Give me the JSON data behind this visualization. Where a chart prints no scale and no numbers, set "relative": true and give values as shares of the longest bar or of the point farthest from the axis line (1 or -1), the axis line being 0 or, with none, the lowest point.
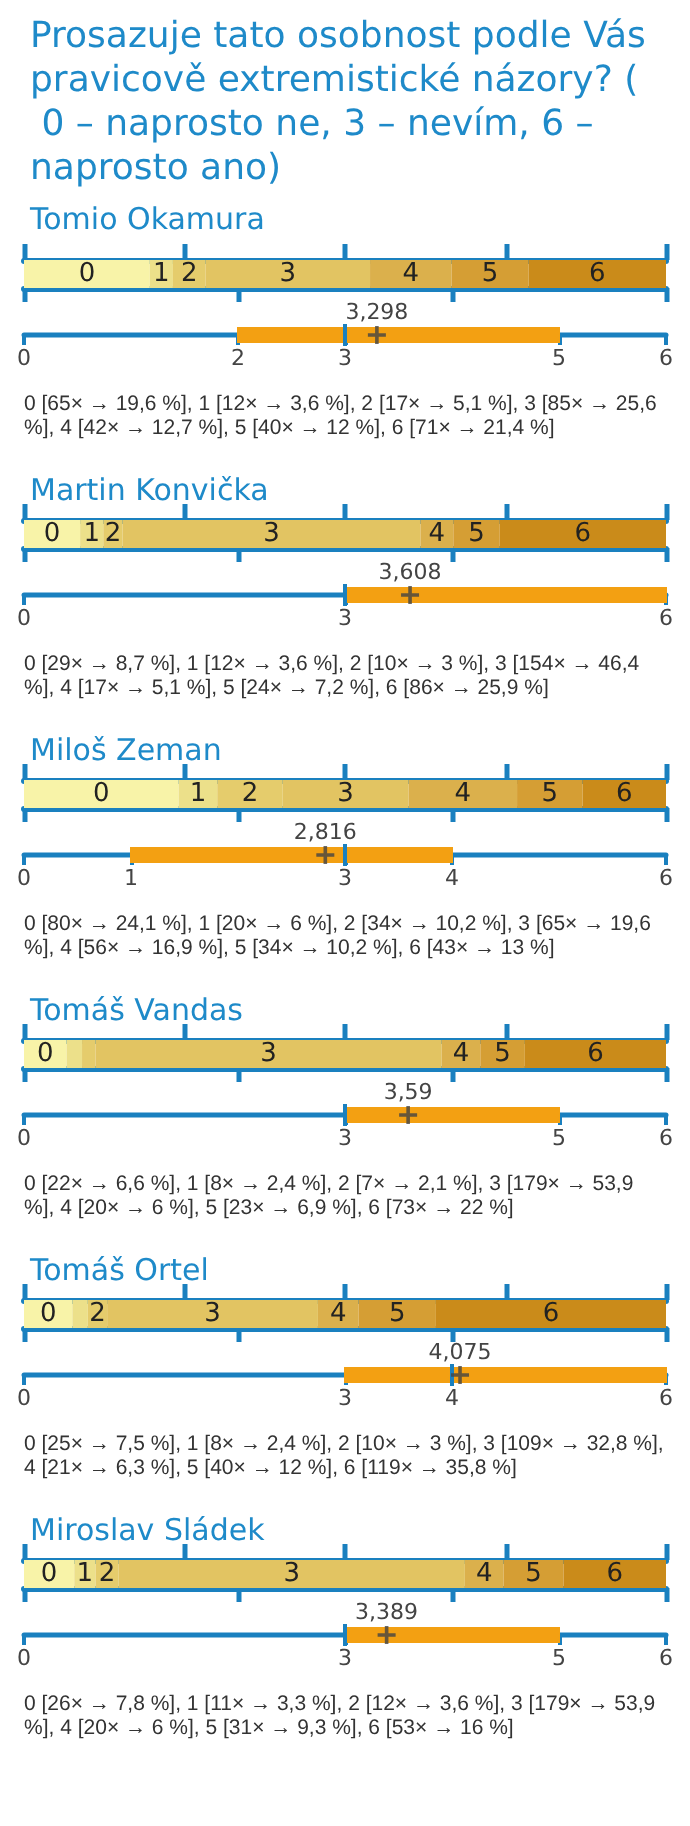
{
  "chart_data": [
    {
      "type": "bar",
      "title": "Prosazuje tato osobnost podle Vás pravicově extremistické názory? ( 0 – naprosto ne, 3 – nevím, 6 – naprosto ano)",
      "subtitle": "Tomio Okamura",
      "orientation": "horizontal",
      "stacked": true,
      "relative": true,
      "categories": [
        null
      ],
      "series": [
        {
          "name": "0",
          "color": "#f8f3a8",
          "values": [
            0.196
          ]
        },
        {
          "name": "1",
          "color": "#ece08a",
          "values": [
            0.036
          ]
        },
        {
          "name": "2",
          "color": "#e5cc6c",
          "values": [
            0.051
          ]
        },
        {
          "name": "3",
          "color": "#e2c462",
          "values": [
            0.256
          ]
        },
        {
          "name": "4",
          "color": "#dbb04c",
          "values": [
            0.127
          ]
        },
        {
          "name": "5",
          "color": "#d59e34",
          "values": [
            0.12
          ]
        },
        {
          "name": "6",
          "color": "#ca8b1a",
          "values": [
            0.214
          ]
        }
      ]
    },
    {
      "type": "box",
      "orientation": "horizontal",
      "categories": [
        null
      ],
      "xlim": [
        0,
        6
      ],
      "xticks": [
        0,
        2,
        3,
        5,
        6
      ],
      "color": "#f3a012",
      "boxes": [
        {
          "low": 2,
          "q1": 2,
          "median": 3,
          "q3": 5,
          "high": 5,
          "mean": 3.298
        }
      ],
      "annotations": [
        "3,298",
        "0 [65× → 19,6 %], 1 [12× → 3,6 %], 2 [17× → 5,1 %], 3 [85× → 25,6 %], 4 [42× → 12,7 %], 5 [40× → 12 %], 6 [71× → 21,4 %]"
      ]
    },
    {
      "type": "bar",
      "title": "Martin Konvička",
      "orientation": "horizontal",
      "stacked": true,
      "relative": true,
      "categories": [
        null
      ],
      "series": [
        {
          "name": "0",
          "color": "#f8f3a8",
          "values": [
            0.0874
          ]
        },
        {
          "name": "1",
          "color": "#ece08a",
          "values": [
            0.0361
          ]
        },
        {
          "name": "2",
          "color": "#e5cc6c",
          "values": [
            0.0301
          ]
        },
        {
          "name": "3",
          "color": "#e2c462",
          "values": [
            0.4639
          ]
        },
        {
          "name": "4",
          "color": "#dbb04c",
          "values": [
            0.0512
          ]
        },
        {
          "name": "5",
          "color": "#d59e34",
          "values": [
            0.0723
          ]
        },
        {
          "name": "6",
          "color": "#ca8b1a",
          "values": [
            0.259
          ]
        }
      ]
    },
    {
      "type": "box",
      "orientation": "horizontal",
      "categories": [
        null
      ],
      "xlim": [
        0,
        6
      ],
      "xticks": [
        0,
        3,
        6
      ],
      "color": "#f3a012",
      "boxes": [
        {
          "low": 3,
          "q1": 3,
          "median": 3,
          "q3": 6,
          "high": 6,
          "mean": 3.608
        }
      ],
      "annotations": [
        "3,608",
        "0 [29× → 8,7 %], 1 [12× → 3,6 %], 2 [10× → 3 %], 3 [154× → 46,4 %], 4 [17× → 5,1 %], 5 [24× → 7,2 %], 6 [86× → 25,9 %]"
      ]
    },
    {
      "type": "bar",
      "title": "Miloš Zeman",
      "orientation": "horizontal",
      "stacked": true,
      "relative": true,
      "categories": [
        null
      ],
      "series": [
        {
          "name": "0",
          "color": "#f8f3a8",
          "values": [
            0.241
          ]
        },
        {
          "name": "1",
          "color": "#ece08a",
          "values": [
            0.06
          ]
        },
        {
          "name": "2",
          "color": "#e5cc6c",
          "values": [
            0.102
          ]
        },
        {
          "name": "3",
          "color": "#e2c462",
          "values": [
            0.196
          ]
        },
        {
          "name": "4",
          "color": "#dbb04c",
          "values": [
            0.169
          ]
        },
        {
          "name": "5",
          "color": "#d59e34",
          "values": [
            0.102
          ]
        },
        {
          "name": "6",
          "color": "#ca8b1a",
          "values": [
            0.13
          ]
        }
      ]
    },
    {
      "type": "box",
      "orientation": "horizontal",
      "categories": [
        null
      ],
      "xlim": [
        0,
        6
      ],
      "xticks": [
        0,
        1,
        3,
        4,
        6
      ],
      "color": "#f3a012",
      "boxes": [
        {
          "low": 1,
          "q1": 1,
          "median": 3,
          "q3": 4,
          "high": 4,
          "mean": 2.816
        }
      ],
      "annotations": [
        "2,816",
        "0 [80× → 24,1 %], 1 [20× → 6 %], 2 [34× → 10,2 %], 3 [65× → 19,6 %], 4 [56× → 16,9 %], 5 [34× → 10,2 %], 6 [43× → 13 %]"
      ]
    },
    {
      "type": "bar",
      "title": "Tomáš Vandas",
      "orientation": "horizontal",
      "stacked": true,
      "relative": true,
      "categories": [
        null
      ],
      "series": [
        {
          "name": "0",
          "color": "#f8f3a8",
          "values": [
            0.0663
          ]
        },
        {
          "color": "#ece08a",
          "values": [
            0.0241
          ]
        },
        {
          "color": "#e5cc6c",
          "values": [
            0.0211
          ]
        },
        {
          "name": "3",
          "color": "#e2c462",
          "values": [
            0.5391
          ]
        },
        {
          "name": "4",
          "color": "#dbb04c",
          "values": [
            0.0602
          ]
        },
        {
          "name": "5",
          "color": "#d59e34",
          "values": [
            0.0693
          ]
        },
        {
          "name": "6",
          "color": "#ca8b1a",
          "values": [
            0.2199
          ]
        }
      ]
    },
    {
      "type": "box",
      "orientation": "horizontal",
      "categories": [
        null
      ],
      "xlim": [
        0,
        6
      ],
      "xticks": [
        0,
        3,
        5,
        6
      ],
      "color": "#f3a012",
      "boxes": [
        {
          "low": 3,
          "q1": 3,
          "median": 3,
          "q3": 5,
          "high": 5,
          "mean": 3.59
        }
      ],
      "annotations": [
        "3,59",
        "0 [22× → 6,6 %], 1 [8× → 2,4 %], 2 [7× → 2,1 %], 3 [179× → 53,9 %], 4 [20× → 6 %], 5 [23× → 6,9 %], 6 [73× → 22 %]"
      ]
    },
    {
      "type": "bar",
      "title": "Tomáš Ortel",
      "orientation": "horizontal",
      "stacked": true,
      "relative": true,
      "categories": [
        null
      ],
      "series": [
        {
          "name": "0",
          "color": "#f8f3a8",
          "values": [
            0.0753
          ]
        },
        {
          "color": "#ece08a",
          "values": [
            0.0241
          ]
        },
        {
          "name": "2",
          "color": "#e5cc6c",
          "values": [
            0.0301
          ]
        },
        {
          "name": "3",
          "color": "#e2c462",
          "values": [
            0.3283
          ]
        },
        {
          "name": "4",
          "color": "#dbb04c",
          "values": [
            0.0633
          ]
        },
        {
          "name": "5",
          "color": "#d59e34",
          "values": [
            0.1205
          ]
        },
        {
          "name": "6",
          "color": "#ca8b1a",
          "values": [
            0.3584
          ]
        }
      ]
    },
    {
      "type": "box",
      "orientation": "horizontal",
      "categories": [
        null
      ],
      "xlim": [
        0,
        6
      ],
      "xticks": [
        0,
        3,
        4,
        6
      ],
      "color": "#f3a012",
      "boxes": [
        {
          "low": 3,
          "q1": 3,
          "median": 4,
          "q3": 6,
          "high": 6,
          "mean": 4.075
        }
      ],
      "annotations": [
        "4,075",
        "0 [25× → 7,5 %], 1 [8× → 2,4 %], 2 [10× → 3 %], 3 [109× → 32,8 %], 4 [21× → 6,3 %], 5 [40× → 12 %], 6 [119× → 35,8 %]"
      ]
    },
    {
      "type": "bar",
      "title": "Miroslav Sládek",
      "orientation": "horizontal",
      "stacked": true,
      "relative": true,
      "categories": [
        null
      ],
      "series": [
        {
          "name": "0",
          "color": "#f8f3a8",
          "values": [
            0.0783
          ]
        },
        {
          "name": "1",
          "color": "#ece08a",
          "values": [
            0.0331
          ]
        },
        {
          "name": "2",
          "color": "#e5cc6c",
          "values": [
            0.0361
          ]
        },
        {
          "name": "3",
          "color": "#e2c462",
          "values": [
            0.5392
          ]
        },
        {
          "name": "4",
          "color": "#dbb04c",
          "values": [
            0.0602
          ]
        },
        {
          "name": "5",
          "color": "#d59e34",
          "values": [
            0.0934
          ]
        },
        {
          "name": "6",
          "color": "#ca8b1a",
          "values": [
            0.1597
          ]
        }
      ]
    },
    {
      "type": "box",
      "orientation": "horizontal",
      "categories": [
        null
      ],
      "xlim": [
        0,
        6
      ],
      "xticks": [
        0,
        3,
        5,
        6
      ],
      "color": "#f3a012",
      "boxes": [
        {
          "low": 3,
          "q1": 3,
          "median": 3,
          "q3": 5,
          "high": 5,
          "mean": 3.389
        }
      ],
      "annotations": [
        "3,389",
        "0 [26× → 7,8 %], 1 [11× → 3,3 %], 2 [12× → 3,6 %], 3 [179× → 53,9 %], 4 [20× → 6 %], 5 [31× → 9,3 %], 6 [53× → 16 %]"
      ]
    }
  ]
}
